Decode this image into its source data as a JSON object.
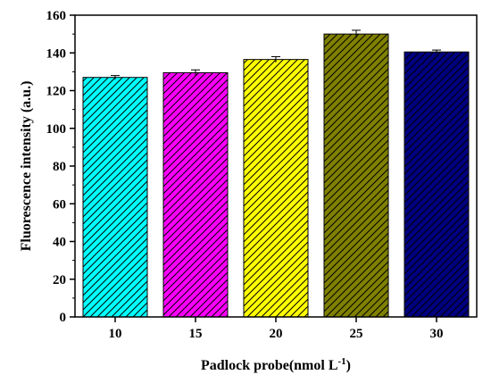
{
  "chart_data": {
    "type": "bar",
    "categories": [
      "10",
      "15",
      "20",
      "25",
      "30"
    ],
    "values": [
      127,
      129.5,
      136.5,
      150,
      140.5
    ],
    "errors": [
      1,
      1.5,
      1.5,
      2,
      1
    ],
    "colors": [
      "#00ffff",
      "#ff00ff",
      "#ffff00",
      "#808000",
      "#000080"
    ],
    "hatch": "diagonal",
    "xlabel": "Padlock probe(nmol L",
    "xlabel_superscript": "-1",
    "xlabel_suffix": ")",
    "ylabel": "Fluorescence intensity (a.u.)",
    "ylim": [
      0,
      160
    ],
    "yticks": [
      0,
      20,
      40,
      60,
      80,
      100,
      120,
      140,
      160
    ],
    "grid": false,
    "legend": false
  }
}
